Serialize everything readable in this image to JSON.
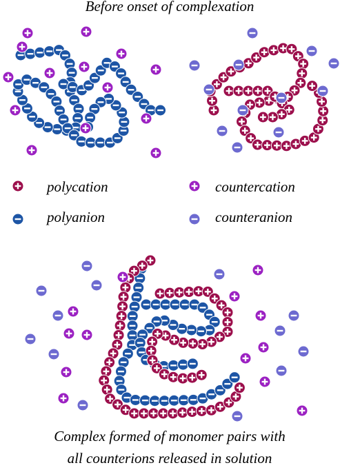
{
  "title": "Before onset of complexation",
  "legend": [
    "polycation",
    "countercation",
    "polyanion",
    "counteranion"
  ],
  "caption": [
    "Complex formed of monomer pairs with",
    "all counterions released in solution"
  ]
}
